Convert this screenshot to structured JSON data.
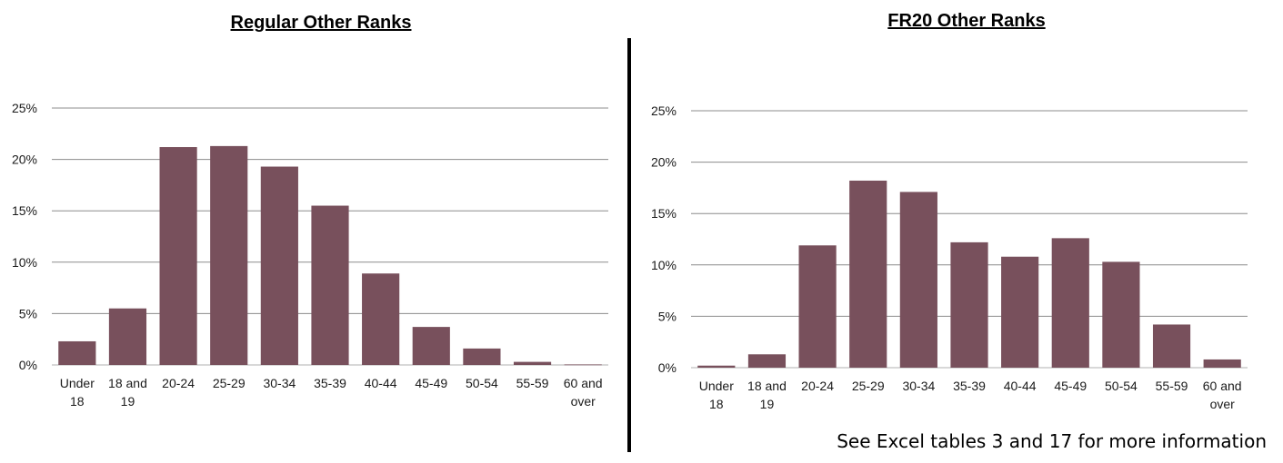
{
  "chart_data": [
    {
      "type": "bar",
      "title": "Regular Other Ranks",
      "xlabel": "",
      "ylabel": "",
      "ylim": [
        0,
        25
      ],
      "yticks": [
        "0%",
        "5%",
        "10%",
        "15%",
        "20%",
        "25%"
      ],
      "ytick_values": [
        0,
        5,
        10,
        15,
        20,
        25
      ],
      "grid": true,
      "categories": [
        "Under 18",
        "18 and 19",
        "20-24",
        "25-29",
        "30-34",
        "35-39",
        "40-44",
        "45-49",
        "50-54",
        "55-59",
        "60 and over"
      ],
      "category_lines": [
        [
          "Under",
          "18"
        ],
        [
          "18 and",
          "19"
        ],
        [
          "20-24"
        ],
        [
          "25-29"
        ],
        [
          "30-34"
        ],
        [
          "35-39"
        ],
        [
          "40-44"
        ],
        [
          "45-49"
        ],
        [
          "50-54"
        ],
        [
          "55-59"
        ],
        [
          "60 and",
          "over"
        ]
      ],
      "values": [
        2.3,
        5.5,
        21.2,
        21.3,
        19.3,
        15.5,
        8.9,
        3.7,
        1.6,
        0.3,
        0.05
      ],
      "bar_color": "#78505c"
    },
    {
      "type": "bar",
      "title": "FR20 Other Ranks",
      "xlabel": "",
      "ylabel": "",
      "ylim": [
        0,
        25
      ],
      "yticks": [
        "0%",
        "5%",
        "10%",
        "15%",
        "20%",
        "25%"
      ],
      "ytick_values": [
        0,
        5,
        10,
        15,
        20,
        25
      ],
      "grid": true,
      "categories": [
        "Under 18",
        "18 and 19",
        "20-24",
        "25-29",
        "30-34",
        "35-39",
        "40-44",
        "45-49",
        "50-54",
        "55-59",
        "60 and over"
      ],
      "category_lines": [
        [
          "Under",
          "18"
        ],
        [
          "18 and",
          "19"
        ],
        [
          "20-24"
        ],
        [
          "25-29"
        ],
        [
          "30-34"
        ],
        [
          "35-39"
        ],
        [
          "40-44"
        ],
        [
          "45-49"
        ],
        [
          "50-54"
        ],
        [
          "55-59"
        ],
        [
          "60 and",
          "over"
        ]
      ],
      "values": [
        0.2,
        1.3,
        11.9,
        18.2,
        17.1,
        12.2,
        10.8,
        12.6,
        10.3,
        4.2,
        0.8
      ],
      "bar_color": "#78505c"
    }
  ],
  "footnote": "See Excel tables 3 and 17 for more information"
}
